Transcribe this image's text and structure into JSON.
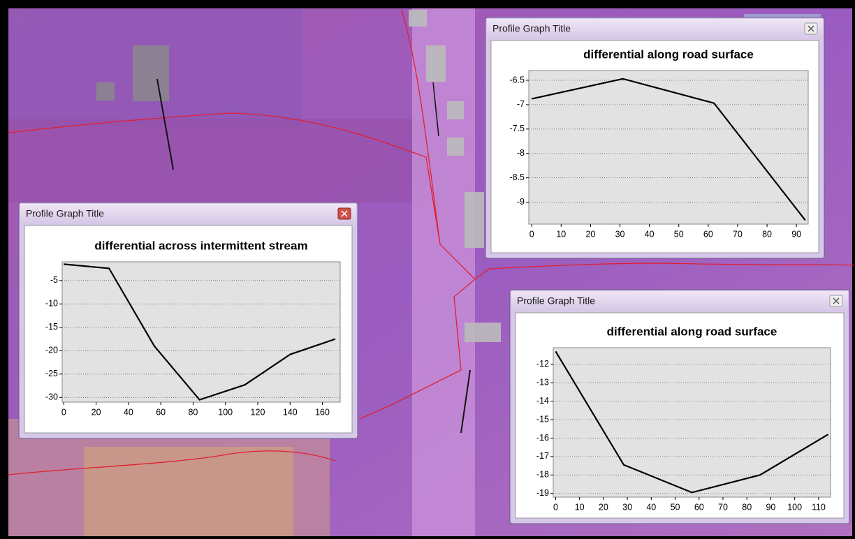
{
  "windows": [
    {
      "title": "Profile Graph Title"
    },
    {
      "title": "Profile Graph Title"
    },
    {
      "title": "Profile Graph Title"
    }
  ],
  "chart_data": [
    {
      "type": "line",
      "title": "differential along road surface",
      "x": [
        0,
        31,
        62,
        93
      ],
      "values": [
        -6.88,
        -6.47,
        -6.97,
        -9.37
      ],
      "color": "#000000",
      "xlim": [
        -1,
        94
      ],
      "xticks": [
        0,
        10,
        20,
        30,
        40,
        50,
        60,
        70,
        80,
        90
      ],
      "ylim": [
        -9.45,
        -6.3
      ],
      "yticks": [
        -6.5,
        -7,
        -7.5,
        -8,
        -8.5,
        -9
      ],
      "grid": true
    },
    {
      "type": "line",
      "title": "differential across intermittent stream",
      "x": [
        0,
        28,
        56,
        84,
        112,
        140,
        168
      ],
      "values": [
        -1.5,
        -2.4,
        -19,
        -30.5,
        -27.3,
        -20.8,
        -17.5
      ],
      "color": "#000000",
      "xlim": [
        -1,
        171
      ],
      "xticks": [
        0,
        20,
        40,
        60,
        80,
        100,
        120,
        140,
        160
      ],
      "ylim": [
        -31,
        -1
      ],
      "yticks": [
        -5,
        -10,
        -15,
        -20,
        -25,
        -30
      ],
      "grid": true
    },
    {
      "type": "line",
      "title": "differential along road surface",
      "x": [
        0,
        28.5,
        57,
        85.5,
        114
      ],
      "values": [
        -11.3,
        -17.45,
        -18.95,
        -18,
        -15.8
      ],
      "color": "#000000",
      "xlim": [
        -1,
        115
      ],
      "xticks": [
        0,
        10,
        20,
        30,
        40,
        50,
        60,
        70,
        80,
        90,
        100,
        110
      ],
      "ylim": [
        -19.2,
        -11.1
      ],
      "yticks": [
        -12,
        -13,
        -14,
        -15,
        -16,
        -17,
        -18,
        -19
      ],
      "grid": true
    }
  ]
}
